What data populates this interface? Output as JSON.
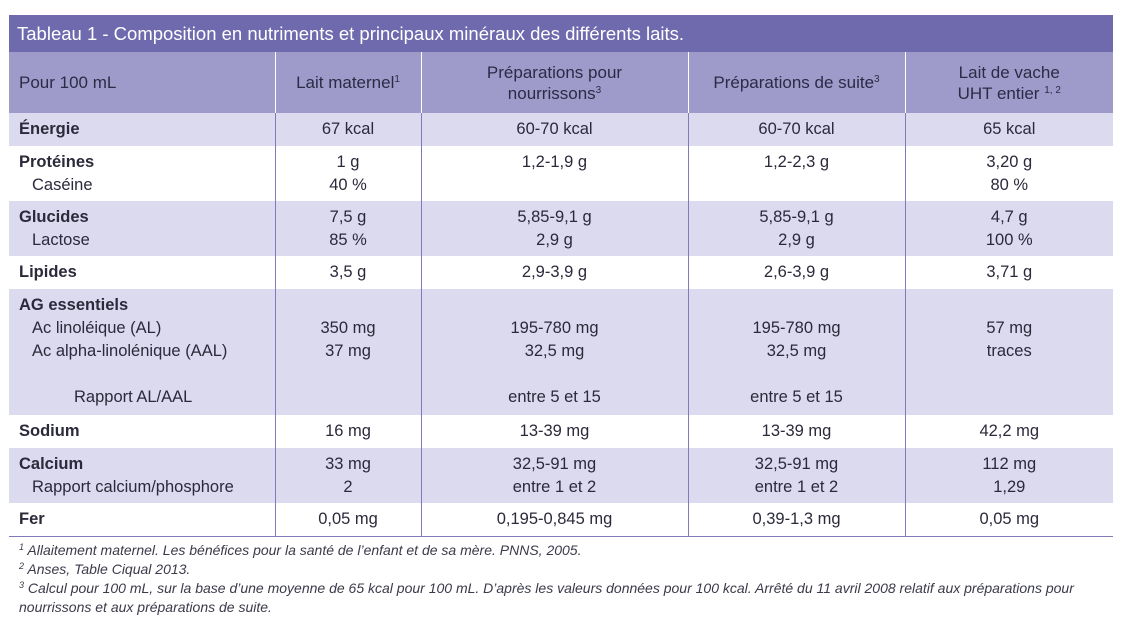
{
  "title": "Tableau 1 - Composition en nutriments et principaux minéraux des différents laits.",
  "header": {
    "col0": "Pour 100 mL",
    "col1": "Lait maternel",
    "col1_sup": "1",
    "col2_line1": "Préparations pour",
    "col2_line2": "nourrissons",
    "col2_sup": "3",
    "col3": "Préparations de suite",
    "col3_sup": "3",
    "col4_line1": "Lait de vache",
    "col4_line2": "UHT entier",
    "col4_sup": "1, 2"
  },
  "rows": {
    "energie": {
      "label": "Énergie",
      "v": [
        "67 kcal",
        "60-70 kcal",
        "60-70 kcal",
        "65 kcal"
      ]
    },
    "proteines": {
      "label": "Protéines",
      "sub": "Caséine",
      "v": [
        "1 g",
        "1,2-1,9 g",
        "1,2-2,3 g",
        "3,20 g"
      ],
      "s": [
        "40 %",
        "",
        "",
        "80 %"
      ]
    },
    "glucides": {
      "label": "Glucides",
      "sub": "Lactose",
      "v": [
        "7,5 g",
        "5,85-9,1 g",
        "5,85-9,1 g",
        "4,7 g"
      ],
      "s": [
        "85 %",
        "2,9 g",
        "2,9 g",
        "100 %"
      ]
    },
    "lipides": {
      "label": "Lipides",
      "v": [
        "3,5 g",
        "2,9-3,9 g",
        "2,6-3,9 g",
        "3,71 g"
      ]
    },
    "ag": {
      "label": "AG essentiels",
      "sub1": "Ac linoléique (AL)",
      "sub2": "Ac alpha-linolénique (AAL)",
      "sub3": "Rapport AL/AAL",
      "a": [
        "350 mg",
        "195-780 mg",
        "195-780 mg",
        "57 mg"
      ],
      "b": [
        "37 mg",
        "32,5 mg",
        "32,5 mg",
        "traces"
      ],
      "c": [
        "",
        "entre 5 et 15",
        "entre 5 et 15",
        ""
      ]
    },
    "sodium": {
      "label": "Sodium",
      "v": [
        "16 mg",
        "13-39 mg",
        "13-39 mg",
        "42,2 mg"
      ]
    },
    "calcium": {
      "label": "Calcium",
      "sub": "Rapport calcium/phosphore",
      "v": [
        "33 mg",
        "32,5-91 mg",
        "32,5-91 mg",
        "112 mg"
      ],
      "s": [
        "2",
        "entre 1 et 2",
        "entre 1 et 2",
        "1,29"
      ]
    },
    "fer": {
      "label": "Fer",
      "v": [
        "0,05 mg",
        "0,195-0,845 mg",
        "0,39-1,3 mg",
        "0,05 mg"
      ]
    }
  },
  "footnotes": [
    {
      "num": "1",
      "text": "Allaitement maternel. Les bénéfices pour la santé de l’enfant et de sa mère. PNNS, 2005."
    },
    {
      "num": "2",
      "text": "Anses, Table Ciqual 2013."
    },
    {
      "num": "3",
      "text": "Calcul pour 100 mL, sur la base d’une moyenne de 65 kcal pour 100 mL. D’après les valeurs données pour 100 kcal. Arrêté du 11 avril 2008 relatif aux préparations pour nourrissons et aux préparations de suite."
    }
  ],
  "colors": {
    "title_bg": "#6f6aae",
    "header_bg": "#9e9bcb",
    "row_shade": "#dcdaee",
    "divider": "#7f7ab8"
  }
}
